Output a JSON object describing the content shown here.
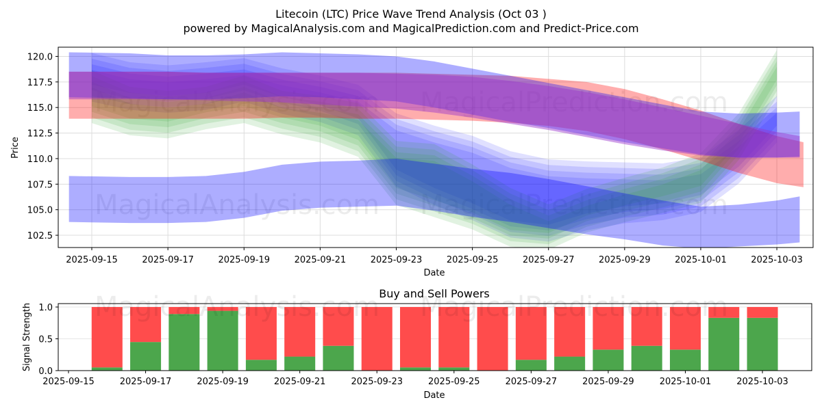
{
  "chart_data": [
    {
      "type": "area",
      "title": "Litecoin (LTC) Price Wave Trend Analysis (Oct 03 )",
      "subtitle": "powered by MagicalAnalysis.com and MagicalPrediction.com and Predict-Price.com",
      "xlabel": "Date",
      "ylabel": "Price",
      "x_ticks": [
        "2025-09-15",
        "2025-09-17",
        "2025-09-19",
        "2025-09-21",
        "2025-09-23",
        "2025-09-25",
        "2025-09-27",
        "2025-09-29",
        "2025-10-01",
        "2025-10-03"
      ],
      "y_ticks": [
        "102.5",
        "105.0",
        "107.5",
        "110.0",
        "112.5",
        "115.0",
        "117.5",
        "120.0"
      ],
      "ylim": [
        101.3,
        120.9
      ],
      "xlim": [
        "2025-09-14.1",
        "2025-10-03.95"
      ],
      "grid": true,
      "watermarks": [
        "MagicalAnalysis.com",
        "MagicalPrediction.com"
      ],
      "series": [
        {
          "name": "blue-low-band",
          "color": "#0000ff",
          "alpha": 0.32,
          "x": [
            -0.6,
            1.0,
            2.0,
            3.0,
            4.0,
            5.0,
            6.0,
            7.0,
            8.0,
            9.0,
            10.0,
            11.0,
            12.0,
            13.0,
            14.0,
            15.0,
            16.0,
            17.0,
            18.0,
            18.6
          ],
          "upper": [
            108.3,
            108.2,
            108.2,
            108.3,
            108.7,
            109.4,
            109.7,
            109.8,
            110.0,
            109.5,
            109.0,
            108.6,
            108.0,
            107.3,
            106.6,
            105.9,
            105.3,
            105.5,
            105.9,
            106.3
          ],
          "lower": [
            103.8,
            103.7,
            103.7,
            103.8,
            104.2,
            104.9,
            105.2,
            105.3,
            105.4,
            104.9,
            104.3,
            103.8,
            103.2,
            102.6,
            102.1,
            101.5,
            101.2,
            101.4,
            101.6,
            101.8
          ]
        },
        {
          "name": "blue-high-band",
          "color": "#0000ff",
          "alpha": 0.32,
          "x": [
            -0.6,
            1.0,
            2.0,
            3.0,
            4.0,
            5.0,
            6.0,
            7.0,
            8.0,
            9.0,
            10.0,
            11.0,
            12.0,
            13.0,
            14.0,
            15.0,
            16.0,
            17.0,
            18.0,
            18.6
          ],
          "upper": [
            120.4,
            120.3,
            120.1,
            120.1,
            120.2,
            120.4,
            120.3,
            120.2,
            120.0,
            119.5,
            118.8,
            118.1,
            117.4,
            116.7,
            116.0,
            115.3,
            114.6,
            114.4,
            114.5,
            114.6
          ],
          "lower": [
            116.0,
            115.9,
            115.8,
            115.8,
            115.9,
            116.1,
            116.0,
            115.8,
            115.6,
            115.0,
            114.3,
            113.6,
            113.0,
            112.3,
            111.6,
            111.0,
            110.4,
            110.1,
            110.1,
            110.2
          ]
        },
        {
          "name": "red-band",
          "color": "#ff0000",
          "alpha": 0.32,
          "x": [
            -0.6,
            1.0,
            2.0,
            3.0,
            4.0,
            5.0,
            6.0,
            7.0,
            8.0,
            9.0,
            10.0,
            11.0,
            12.0,
            13.0,
            14.0,
            15.0,
            16.0,
            17.0,
            18.0,
            18.7
          ],
          "upper": [
            118.5,
            118.5,
            118.5,
            118.4,
            118.4,
            118.4,
            118.4,
            118.4,
            118.4,
            118.3,
            118.2,
            118.1,
            117.8,
            117.5,
            116.8,
            115.8,
            114.7,
            113.4,
            112.2,
            111.6
          ],
          "lower": [
            113.9,
            113.9,
            113.9,
            113.9,
            113.9,
            114.0,
            114.0,
            113.9,
            113.9,
            113.8,
            113.7,
            113.5,
            113.2,
            112.7,
            111.9,
            110.9,
            109.8,
            108.6,
            107.6,
            107.2
          ]
        },
        {
          "name": "purple-band",
          "color": "#9933cc",
          "alpha": 0.45,
          "x": [
            -0.6,
            1.0,
            2.0,
            3.0,
            4.0,
            5.0,
            6.0,
            7.0,
            8.0,
            9.0,
            10.0,
            11.0,
            12.0,
            13.0,
            14.0,
            15.0,
            16.0,
            17.0,
            18.0,
            18.6
          ],
          "upper": [
            118.5,
            118.5,
            118.5,
            118.4,
            118.4,
            118.4,
            118.4,
            118.4,
            118.3,
            118.2,
            118.0,
            117.6,
            117.1,
            116.5,
            115.8,
            115.0,
            114.2,
            113.4,
            112.6,
            112.2
          ],
          "lower": [
            115.8,
            115.8,
            115.8,
            115.7,
            115.6,
            115.5,
            115.3,
            115.1,
            114.9,
            114.5,
            114.0,
            113.4,
            112.8,
            112.1,
            111.4,
            110.8,
            110.3,
            110.1,
            110.1,
            110.1
          ]
        },
        {
          "name": "green-wave-band",
          "color": "#2ca02c",
          "alpha": 0.14,
          "x": [
            0.0,
            1.0,
            2.0,
            3.0,
            4.0,
            5.0,
            6.0,
            7.0,
            8.0,
            9.0,
            10.0,
            11.0,
            12.0,
            13.0,
            14.0,
            15.0,
            16.0,
            17.0,
            18.0
          ],
          "upper": [
            117.8,
            116.2,
            115.8,
            116.2,
            117.3,
            115.8,
            115.3,
            114.6,
            110.9,
            110.6,
            108.6,
            106.3,
            104.7,
            106.2,
            107.3,
            108.3,
            109.7,
            113.6,
            119.8
          ],
          "lower": [
            114.3,
            113.1,
            112.8,
            113.7,
            114.3,
            113.2,
            112.4,
            111.0,
            106.3,
            105.1,
            103.9,
            102.2,
            101.9,
            103.6,
            104.6,
            105.5,
            106.5,
            110.7,
            116.9
          ]
        },
        {
          "name": "light-blue-wave-band",
          "color": "#0000ff",
          "alpha": 0.12,
          "x": [
            0.0,
            1.0,
            2.0,
            3.0,
            4.0,
            5.0,
            6.0,
            7.0,
            8.0,
            9.0,
            10.0,
            11.0,
            12.0,
            13.0,
            14.0,
            15.0,
            16.0,
            17.0,
            18.0
          ],
          "upper": [
            119.5,
            118.6,
            118.3,
            118.6,
            119.0,
            118.0,
            117.3,
            116.4,
            113.6,
            112.4,
            111.4,
            109.9,
            109.1,
            108.9,
            108.8,
            108.7,
            109.3,
            112.0,
            115.3
          ],
          "lower": [
            116.4,
            115.6,
            115.3,
            115.6,
            116.4,
            115.2,
            114.4,
            113.1,
            108.1,
            106.3,
            104.8,
            103.1,
            102.7,
            103.8,
            104.5,
            104.8,
            105.6,
            108.4,
            112.4
          ]
        }
      ]
    },
    {
      "type": "bar",
      "title": "Buy and Sell Powers",
      "xlabel": "Date",
      "ylabel": "Signal Strength",
      "x_ticks": [
        "2025-09-15",
        "2025-09-17",
        "2025-09-19",
        "2025-09-21",
        "2025-09-23",
        "2025-09-25",
        "2025-09-27",
        "2025-09-29",
        "2025-10-01",
        "2025-10-03"
      ],
      "y_ticks": [
        "0.0",
        "0.5",
        "1.0"
      ],
      "ylim": [
        0,
        1.05
      ],
      "grid": true,
      "categories": [
        "2025-09-16",
        "2025-09-17",
        "2025-09-18",
        "2025-09-19",
        "2025-09-20",
        "2025-09-21",
        "2025-09-22",
        "2025-09-23",
        "2025-09-24",
        "2025-09-25",
        "2025-09-26",
        "2025-09-27",
        "2025-09-28",
        "2025-09-29",
        "2025-09-30",
        "2025-10-01",
        "2025-10-02",
        "2025-10-03"
      ],
      "series": [
        {
          "name": "Buy",
          "color": "#4ca64c",
          "values": [
            0.05,
            0.45,
            0.89,
            0.94,
            0.17,
            0.22,
            0.39,
            0.0,
            0.05,
            0.05,
            0.0,
            0.17,
            0.22,
            0.33,
            0.39,
            0.33,
            0.83,
            0.83
          ]
        },
        {
          "name": "Sell",
          "color": "#ff4c4c",
          "values": [
            0.95,
            0.55,
            0.11,
            0.06,
            0.83,
            0.78,
            0.61,
            1.0,
            0.95,
            0.95,
            1.0,
            0.83,
            0.78,
            0.67,
            0.61,
            0.67,
            0.17,
            0.17
          ]
        }
      ],
      "watermarks": [
        "MagicalAnalysis.com",
        "MagicalPrediction.com"
      ]
    }
  ]
}
